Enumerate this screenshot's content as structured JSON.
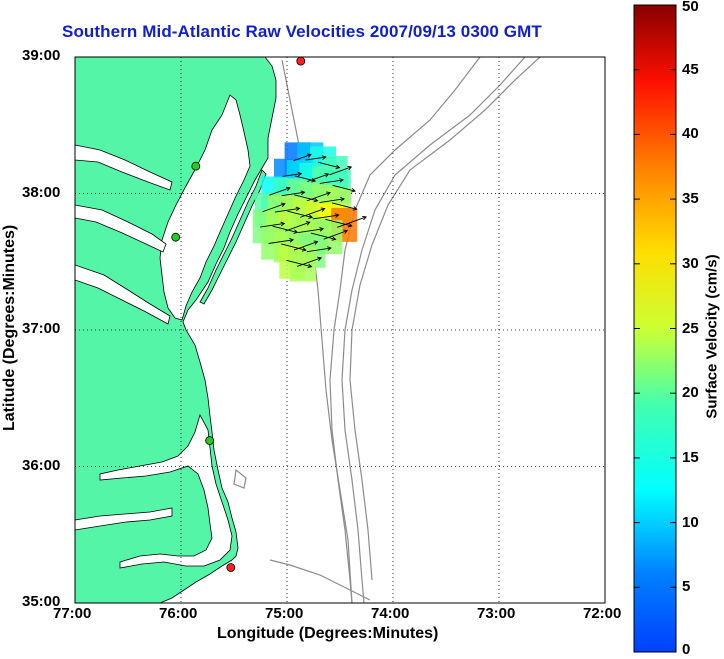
{
  "title": "Southern Mid-Atlantic Raw Velocities 2007/09/13 0300 GMT",
  "map": {
    "xlabel": "Longitude (Degrees:Minutes)",
    "ylabel": "Latitude (Degrees:Minutes)",
    "lon_range": [
      -77,
      -72
    ],
    "lat_range": [
      35,
      39
    ],
    "x_ticks": [
      {
        "value": -77,
        "label": "77:00"
      },
      {
        "value": -76,
        "label": "76:00"
      },
      {
        "value": -75,
        "label": "75:00"
      },
      {
        "value": -74,
        "label": "74:00"
      },
      {
        "value": -73,
        "label": "73:00"
      },
      {
        "value": -72,
        "label": "72:00"
      }
    ],
    "y_ticks": [
      {
        "value": 39,
        "label": "39:00"
      },
      {
        "value": 38,
        "label": "38:00"
      },
      {
        "value": 37,
        "label": "37:00"
      },
      {
        "value": 36,
        "label": "36:00"
      },
      {
        "value": 35,
        "label": "35:00"
      }
    ],
    "grid": "dotted",
    "land_color": "#55f5a8",
    "bathymetry_color": "#8c8c8c",
    "stations": [
      {
        "name": "green-station",
        "lon": -75.86,
        "lat": 38.2,
        "color": "#22cc22"
      },
      {
        "name": "green-station",
        "lon": -76.05,
        "lat": 37.68,
        "color": "#22cc22"
      },
      {
        "name": "green-station",
        "lon": -75.73,
        "lat": 36.19,
        "color": "#22cc22"
      },
      {
        "name": "red-station",
        "lon": -74.87,
        "lat": 38.97,
        "color": "#ff2020"
      },
      {
        "name": "red-station",
        "lon": -75.53,
        "lat": 35.26,
        "color": "#ff2020"
      }
    ]
  },
  "colorbar": {
    "label": "Surface Velocity (cm/s)",
    "min": 0,
    "max": 50,
    "ticks": [
      0,
      5,
      10,
      15,
      20,
      25,
      30,
      35,
      40,
      45,
      50
    ],
    "colormap": "jet"
  },
  "chart_data": {
    "type": "scatter",
    "title": "Southern Mid-Atlantic Raw Velocities 2007/09/13 0300 GMT",
    "xlabel": "Longitude (Degrees:Minutes)",
    "ylabel": "Latitude (Degrees:Minutes)",
    "xlim": [
      -77,
      -72
    ],
    "ylim": [
      35,
      39
    ],
    "legend": "colorbar right",
    "series": [
      {
        "name": "Surface Velocity (cm/s)",
        "points": [
          {
            "lon": -74.9,
            "lat": 38.25,
            "speed": 12
          },
          {
            "lon": -74.78,
            "lat": 38.25,
            "speed": 16
          },
          {
            "lon": -74.66,
            "lat": 38.22,
            "speed": 20
          },
          {
            "lon": -74.55,
            "lat": 38.15,
            "speed": 22
          },
          {
            "lon": -75.0,
            "lat": 38.13,
            "speed": 13
          },
          {
            "lon": -74.88,
            "lat": 38.12,
            "speed": 17
          },
          {
            "lon": -74.76,
            "lat": 38.1,
            "speed": 20
          },
          {
            "lon": -74.64,
            "lat": 38.08,
            "speed": 23
          },
          {
            "lon": -74.52,
            "lat": 38.05,
            "speed": 22
          },
          {
            "lon": -75.12,
            "lat": 38.0,
            "speed": 19
          },
          {
            "lon": -75.0,
            "lat": 37.99,
            "speed": 22
          },
          {
            "lon": -74.88,
            "lat": 37.98,
            "speed": 24
          },
          {
            "lon": -74.76,
            "lat": 37.96,
            "speed": 25
          },
          {
            "lon": -74.64,
            "lat": 37.94,
            "speed": 26
          },
          {
            "lon": -74.52,
            "lat": 37.92,
            "speed": 27
          },
          {
            "lon": -75.18,
            "lat": 37.88,
            "speed": 23
          },
          {
            "lon": -75.06,
            "lat": 37.87,
            "speed": 26
          },
          {
            "lon": -74.94,
            "lat": 37.86,
            "speed": 27
          },
          {
            "lon": -74.82,
            "lat": 37.84,
            "speed": 28
          },
          {
            "lon": -74.7,
            "lat": 37.82,
            "speed": 29
          },
          {
            "lon": -74.58,
            "lat": 37.8,
            "speed": 31
          },
          {
            "lon": -74.46,
            "lat": 37.77,
            "speed": 38
          },
          {
            "lon": -75.2,
            "lat": 37.76,
            "speed": 25
          },
          {
            "lon": -75.08,
            "lat": 37.75,
            "speed": 27
          },
          {
            "lon": -74.96,
            "lat": 37.74,
            "speed": 28
          },
          {
            "lon": -74.84,
            "lat": 37.72,
            "speed": 27
          },
          {
            "lon": -74.72,
            "lat": 37.7,
            "speed": 27
          },
          {
            "lon": -74.6,
            "lat": 37.68,
            "speed": 26
          },
          {
            "lon": -75.12,
            "lat": 37.64,
            "speed": 26
          },
          {
            "lon": -75.0,
            "lat": 37.62,
            "speed": 27
          },
          {
            "lon": -74.88,
            "lat": 37.6,
            "speed": 26
          },
          {
            "lon": -74.76,
            "lat": 37.58,
            "speed": 25
          },
          {
            "lon": -74.95,
            "lat": 37.5,
            "speed": 28
          },
          {
            "lon": -74.85,
            "lat": 37.48,
            "speed": 27
          }
        ]
      }
    ]
  }
}
